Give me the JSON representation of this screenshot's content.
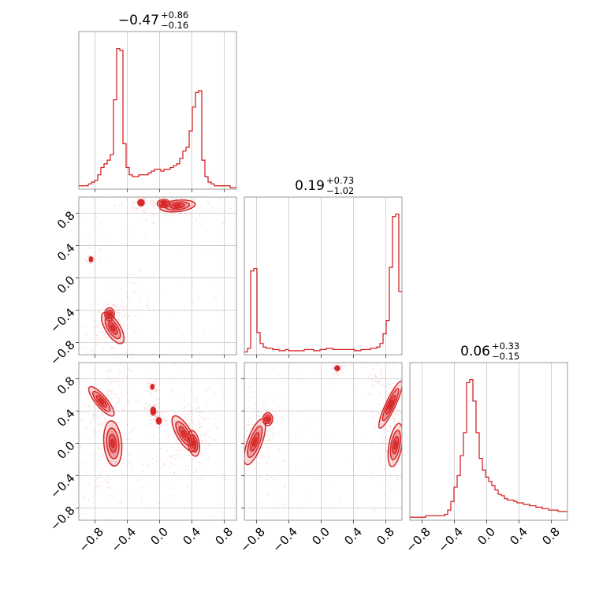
{
  "chart_data": {
    "type": "corner",
    "color": "#d62728",
    "grid": true,
    "ticks": [
      -0.8,
      -0.4,
      0.0,
      0.4,
      0.8
    ],
    "tick_labels": [
      "−0.8",
      "−0.4",
      "0.0",
      "0.4",
      "0.8"
    ],
    "parameters": [
      {
        "range": [
          -1.0,
          0.95
        ],
        "median": "−0.47",
        "plus": "+0.86",
        "minus": "−0.16",
        "hist": [
          1,
          1,
          1,
          2,
          3,
          4,
          7,
          11,
          13,
          15,
          18,
          48,
          76,
          75,
          24,
          11,
          7,
          6,
          6,
          7,
          7,
          7,
          8,
          9,
          10,
          10,
          9,
          10,
          10,
          11,
          12,
          13,
          16,
          20,
          22,
          31,
          44,
          52,
          53,
          15,
          6,
          3,
          2,
          1,
          1,
          1,
          1,
          1,
          0,
          0
        ]
      },
      {
        "range": [
          -0.95,
          1.0
        ],
        "median": "0.19",
        "plus": "+0.73",
        "minus": "−1.02",
        "hist": [
          1,
          4,
          68,
          70,
          17,
          8,
          5,
          4,
          4,
          3,
          3,
          2,
          2,
          3,
          2,
          2,
          2,
          2,
          2,
          3,
          3,
          3,
          2,
          2,
          3,
          3,
          4,
          4,
          3,
          3,
          3,
          3,
          3,
          3,
          3,
          2,
          2,
          3,
          3,
          3,
          4,
          4,
          5,
          8,
          16,
          27,
          71,
          113,
          115,
          51
        ]
      },
      {
        "range": [
          -0.95,
          1.0
        ],
        "median": "0.06",
        "plus": "+0.33",
        "minus": "−0.15",
        "hist": [
          1,
          1,
          1,
          1,
          1,
          2,
          2,
          2,
          2,
          2,
          2,
          3,
          6,
          12,
          22,
          30,
          44,
          60,
          95,
          97,
          82,
          60,
          42,
          34,
          29,
          26,
          23,
          20,
          17,
          16,
          14,
          13,
          13,
          12,
          11,
          11,
          10,
          10,
          9,
          9,
          8,
          8,
          7,
          7,
          6,
          6,
          6,
          5,
          5,
          5
        ]
      }
    ],
    "pairs": [
      {
        "x": 0,
        "y": 1,
        "blobs": [
          {
            "cx": -0.58,
            "cy": -0.62,
            "rx": 0.09,
            "ry": 0.22,
            "rot": -32
          },
          {
            "cx": -0.62,
            "cy": -0.45,
            "rx": 0.06,
            "ry": 0.08,
            "rot": 0
          },
          {
            "cx": 0.22,
            "cy": 0.89,
            "rx": 0.22,
            "ry": 0.07,
            "rot": -6
          },
          {
            "cx": 0.05,
            "cy": 0.92,
            "rx": 0.08,
            "ry": 0.05,
            "rot": 0
          },
          {
            "cx": -0.23,
            "cy": 0.93,
            "rx": 0.04,
            "ry": 0.04,
            "rot": 0
          },
          {
            "cx": -0.85,
            "cy": 0.23,
            "rx": 0.02,
            "ry": 0.03,
            "rot": 0
          }
        ]
      },
      {
        "x": 0,
        "y": 2,
        "blobs": [
          {
            "cx": -0.58,
            "cy": 0.0,
            "rx": 0.11,
            "ry": 0.28,
            "rot": -5
          },
          {
            "cx": -0.72,
            "cy": 0.52,
            "rx": 0.07,
            "ry": 0.23,
            "rot": -40
          },
          {
            "cx": 0.3,
            "cy": 0.12,
            "rx": 0.09,
            "ry": 0.25,
            "rot": -30
          },
          {
            "cx": 0.42,
            "cy": 0.0,
            "rx": 0.07,
            "ry": 0.16,
            "rot": -10
          },
          {
            "cx": -0.08,
            "cy": 0.4,
            "rx": 0.03,
            "ry": 0.05,
            "rot": 0
          },
          {
            "cx": -0.01,
            "cy": 0.28,
            "rx": 0.03,
            "ry": 0.04,
            "rot": 0
          },
          {
            "cx": -0.09,
            "cy": 0.7,
            "rx": 0.02,
            "ry": 0.03,
            "rot": 0
          }
        ]
      },
      {
        "x": 1,
        "y": 2,
        "blobs": [
          {
            "cx": -0.82,
            "cy": 0.02,
            "rx": 0.09,
            "ry": 0.3,
            "rot": 20
          },
          {
            "cx": -0.66,
            "cy": 0.3,
            "rx": 0.06,
            "ry": 0.08,
            "rot": 0
          },
          {
            "cx": 0.92,
            "cy": -0.02,
            "rx": 0.08,
            "ry": 0.27,
            "rot": 10
          },
          {
            "cx": 0.86,
            "cy": 0.48,
            "rx": 0.06,
            "ry": 0.32,
            "rot": 25
          },
          {
            "cx": 0.2,
            "cy": 0.93,
            "rx": 0.03,
            "ry": 0.03,
            "rot": 0
          }
        ]
      }
    ]
  }
}
